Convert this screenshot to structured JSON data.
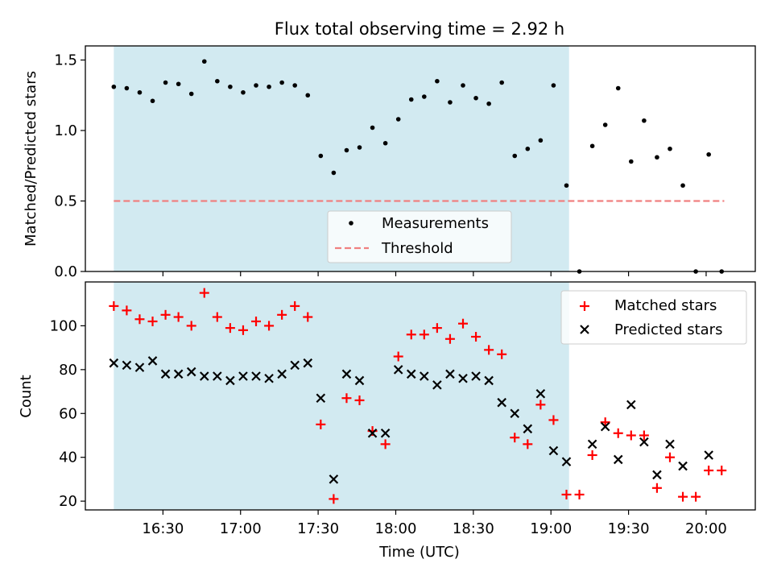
{
  "figure": {
    "title": "Flux total observing time = 2.92 h",
    "xlabel": "Time (UTC)",
    "x_ticks": [
      "16:30",
      "17:00",
      "17:30",
      "18:00",
      "18:30",
      "19:00",
      "19:30",
      "20:00"
    ],
    "x_tick_minutes": [
      990,
      1020,
      1050,
      1080,
      1110,
      1140,
      1170,
      1200
    ],
    "xlim_minutes": [
      960,
      1219
    ],
    "shaded_span_minutes": [
      971,
      1147
    ],
    "shade_color": "#add8e6",
    "colors": {
      "measurements": "#000000",
      "threshold": "#f08080",
      "matched": "#ff0000",
      "predicted": "#000000"
    }
  },
  "chart_data": [
    {
      "type": "scatter",
      "panel": "top",
      "ylabel": "Matched/Predicted stars",
      "ylim": [
        0,
        1.6
      ],
      "y_ticks": [
        "0.0",
        "0.5",
        "1.0",
        "1.5"
      ],
      "y_tick_values": [
        0,
        0.5,
        1.0,
        1.5
      ],
      "legend": {
        "placement": "lower-center",
        "entries": [
          "Measurements",
          "Threshold"
        ]
      },
      "threshold": {
        "name": "Threshold",
        "value": 0.5,
        "x_range_minutes": [
          971,
          1207
        ]
      },
      "series": [
        {
          "name": "Measurements",
          "x_minutes": [
            971,
            976,
            981,
            986,
            991,
            996,
            1001,
            1006,
            1011,
            1016,
            1021,
            1026,
            1031,
            1036,
            1041,
            1046,
            1051,
            1056,
            1061,
            1066,
            1071,
            1076,
            1081,
            1086,
            1091,
            1096,
            1101,
            1106,
            1111,
            1116,
            1121,
            1126,
            1131,
            1136,
            1141,
            1146,
            1151,
            1156,
            1161,
            1166,
            1171,
            1176,
            1181,
            1186,
            1191,
            1196,
            1201,
            1206
          ],
          "y": [
            1.31,
            1.3,
            1.27,
            1.21,
            1.34,
            1.33,
            1.26,
            1.49,
            1.35,
            1.31,
            1.27,
            1.32,
            1.31,
            1.34,
            1.32,
            1.25,
            0.82,
            0.7,
            0.86,
            0.88,
            1.02,
            0.91,
            1.08,
            1.22,
            1.24,
            1.35,
            1.2,
            1.32,
            1.23,
            1.19,
            1.34,
            0.82,
            0.87,
            0.93,
            1.32,
            0.61,
            0.0,
            0.89,
            1.04,
            1.3,
            0.78,
            1.07,
            0.81,
            0.87,
            0.61,
            0.0,
            0.83,
            0.0
          ]
        }
      ]
    },
    {
      "type": "scatter",
      "panel": "bottom",
      "ylabel": "Count",
      "ylim": [
        16,
        120
      ],
      "y_ticks": [
        "20",
        "40",
        "60",
        "80",
        "100"
      ],
      "y_tick_values": [
        20,
        40,
        60,
        80,
        100
      ],
      "legend": {
        "placement": "upper-right",
        "entries": [
          "Matched stars",
          "Predicted stars"
        ]
      },
      "series": [
        {
          "name": "Matched stars",
          "marker": "plus",
          "x_minutes": [
            971,
            976,
            981,
            986,
            991,
            996,
            1001,
            1006,
            1011,
            1016,
            1021,
            1026,
            1031,
            1036,
            1041,
            1046,
            1051,
            1056,
            1061,
            1066,
            1071,
            1076,
            1081,
            1086,
            1091,
            1096,
            1101,
            1106,
            1111,
            1116,
            1121,
            1126,
            1131,
            1136,
            1141,
            1146,
            1151,
            1156,
            1161,
            1166,
            1171,
            1176,
            1181,
            1186,
            1191,
            1196,
            1201,
            1206
          ],
          "y": [
            109,
            107,
            103,
            102,
            105,
            104,
            100,
            115,
            104,
            99,
            98,
            102,
            100,
            105,
            109,
            104,
            55,
            21,
            67,
            66,
            52,
            46,
            86,
            96,
            96,
            99,
            94,
            101,
            95,
            89,
            87,
            49,
            46,
            64,
            57,
            23,
            23,
            41,
            56,
            51,
            50,
            50,
            26,
            40,
            22,
            22,
            34,
            34
          ]
        },
        {
          "name": "Predicted stars",
          "marker": "x",
          "x_minutes": [
            971,
            976,
            981,
            986,
            991,
            996,
            1001,
            1006,
            1011,
            1016,
            1021,
            1026,
            1031,
            1036,
            1041,
            1046,
            1051,
            1056,
            1061,
            1066,
            1071,
            1076,
            1081,
            1086,
            1091,
            1096,
            1101,
            1106,
            1111,
            1116,
            1121,
            1126,
            1131,
            1136,
            1141,
            1146,
            1156,
            1161,
            1166,
            1171,
            1176,
            1181,
            1186,
            1191,
            1201
          ],
          "y": [
            83,
            82,
            81,
            84,
            78,
            78,
            79,
            77,
            77,
            75,
            77,
            77,
            76,
            78,
            82,
            83,
            67,
            30,
            78,
            75,
            51,
            51,
            80,
            78,
            77,
            73,
            78,
            76,
            77,
            75,
            65,
            60,
            53,
            69,
            43,
            38,
            46,
            54,
            39,
            64,
            47,
            32,
            46,
            36,
            41
          ]
        }
      ]
    }
  ]
}
